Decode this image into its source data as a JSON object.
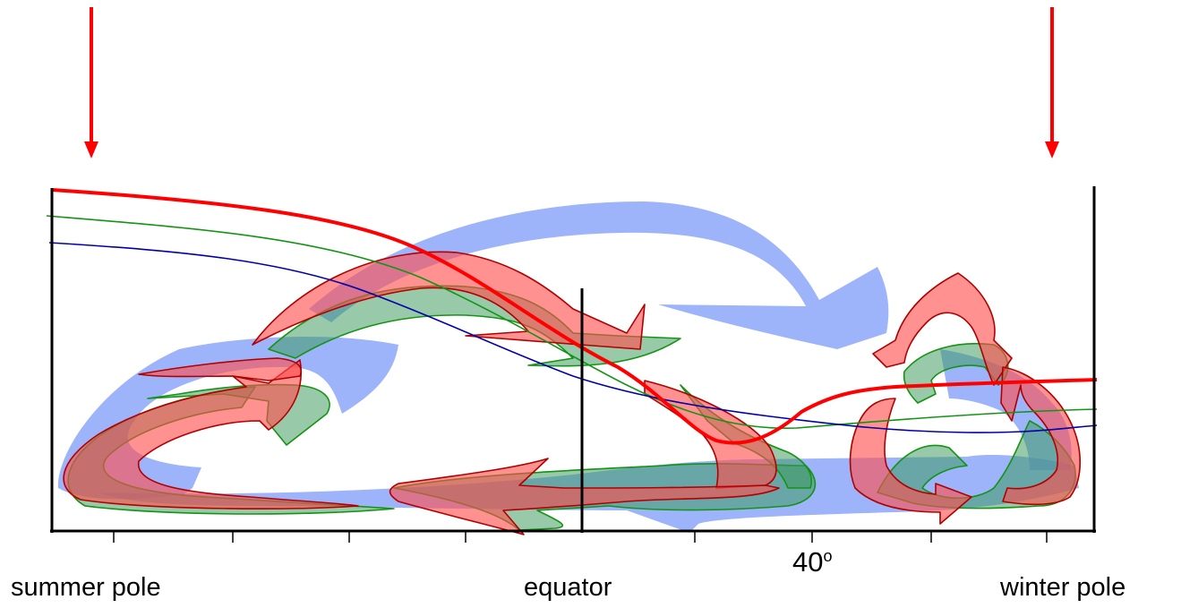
{
  "labels": {
    "summer_pole": "summer pole",
    "equator": "equator",
    "winter_pole": "winter pole",
    "latitude_value": "40",
    "latitude_unit": "o"
  },
  "colors": {
    "heating_arrow": "#ff0000",
    "red_cells": "#ff4d4d",
    "red_outline": "#b00000",
    "green_cells": "#3a9a5b",
    "green_outline": "#139413",
    "blue_flow": "#6f8ff7",
    "thin_blue_line": "#0000aa",
    "axis": "#000000"
  },
  "icons": {
    "left_arrow": "down-arrow-icon",
    "right_arrow": "down-arrow-icon"
  }
}
